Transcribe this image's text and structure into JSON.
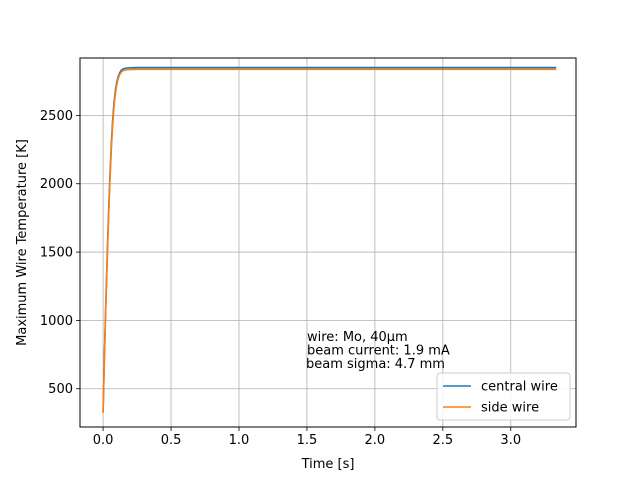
{
  "chart_data": {
    "type": "line",
    "xlabel": "Time [s]",
    "ylabel": "Maximum Wire Temperature [K]",
    "xlim": [
      -0.17,
      3.48
    ],
    "ylim": [
      220,
      2920
    ],
    "grid": true,
    "x_ticks": [
      {
        "value": 0.0,
        "label": "0.0"
      },
      {
        "value": 0.5,
        "label": "0.5"
      },
      {
        "value": 1.0,
        "label": "1.0"
      },
      {
        "value": 1.5,
        "label": "1.5"
      },
      {
        "value": 2.0,
        "label": "2.0"
      },
      {
        "value": 2.5,
        "label": "2.5"
      },
      {
        "value": 3.0,
        "label": "3.0"
      }
    ],
    "y_ticks": [
      {
        "value": 500,
        "label": "500"
      },
      {
        "value": 1000,
        "label": "1000"
      },
      {
        "value": 1500,
        "label": "1500"
      },
      {
        "value": 2000,
        "label": "2000"
      },
      {
        "value": 2500,
        "label": "2500"
      }
    ],
    "series": [
      {
        "name": "central wire",
        "color": "#1f77b4",
        "x": [
          0.0,
          0.01,
          0.02,
          0.03,
          0.04,
          0.05,
          0.06,
          0.07,
          0.08,
          0.09,
          0.1,
          0.11,
          0.12,
          0.13,
          0.14,
          0.15,
          0.16,
          0.17,
          0.18,
          0.2,
          0.22,
          0.25,
          0.3,
          0.4,
          0.6,
          1.0,
          1.5,
          2.0,
          2.5,
          3.0,
          3.33
        ],
        "y": [
          330,
          760,
          1130,
          1470,
          1780,
          2050,
          2280,
          2460,
          2590,
          2680,
          2740,
          2780,
          2808,
          2825,
          2835,
          2841,
          2844,
          2846,
          2847,
          2848,
          2849,
          2850,
          2850,
          2850,
          2850,
          2850,
          2850,
          2850,
          2850,
          2850,
          2850
        ]
      },
      {
        "name": "side wire",
        "color": "#ff7f0e",
        "x": [
          0.0,
          0.01,
          0.02,
          0.03,
          0.04,
          0.05,
          0.06,
          0.07,
          0.08,
          0.09,
          0.1,
          0.11,
          0.12,
          0.13,
          0.14,
          0.15,
          0.16,
          0.17,
          0.18,
          0.2,
          0.22,
          0.25,
          0.3,
          0.4,
          0.6,
          1.0,
          1.5,
          2.0,
          2.5,
          3.0,
          3.33
        ],
        "y": [
          330,
          740,
          1100,
          1430,
          1740,
          2010,
          2240,
          2420,
          2560,
          2655,
          2720,
          2765,
          2795,
          2812,
          2822,
          2828,
          2831,
          2833,
          2834,
          2835,
          2836,
          2837,
          2837,
          2837,
          2837,
          2837,
          2837,
          2837,
          2837,
          2837,
          2837
        ]
      }
    ],
    "annotations": [
      "wire: Mo, 40µm",
      "beam current:  1.9 mA",
      "beam sigma: 4.7 mm"
    ],
    "legend_position": "lower-right"
  }
}
